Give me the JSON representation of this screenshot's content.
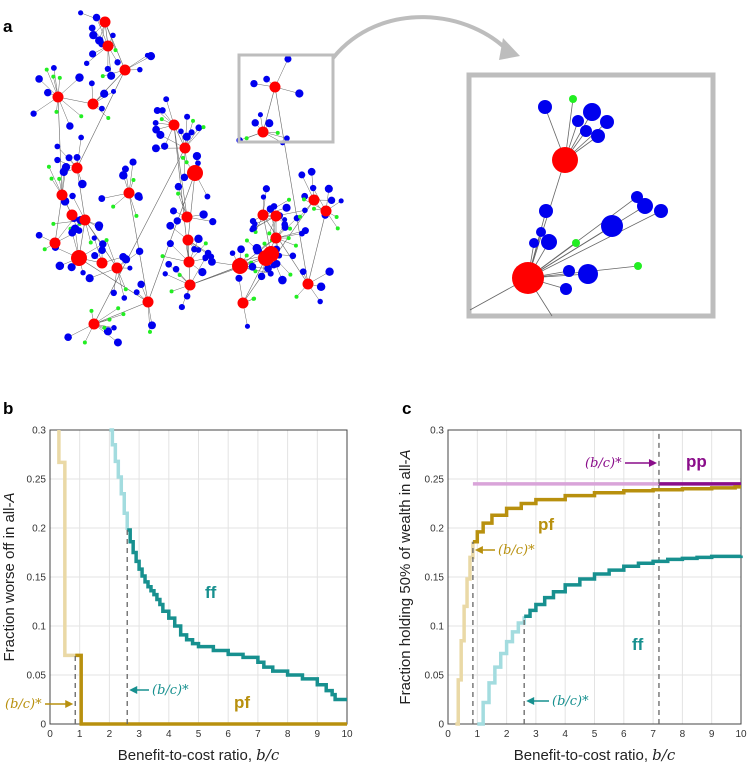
{
  "panels": {
    "a": {
      "letter": "a"
    },
    "b": {
      "letter": "b"
    },
    "c": {
      "letter": "c"
    }
  },
  "colors": {
    "hub": "#ff0000",
    "node": "#0000ee",
    "leaf": "#22ee22",
    "edge": "#666666",
    "frame": "#bdbdbd",
    "ff": "#17908f",
    "ff_light": "#a3dcdf",
    "pf": "#b8900e",
    "pf_light": "#ead9a6",
    "pp": "#8a0d8a",
    "pp_light": "#d9a4d9",
    "grid": "#e3e3e3",
    "dash": "#666666"
  },
  "chart_data": [
    {
      "panel": "b",
      "type": "line",
      "step": true,
      "xlabel": "Benefit-to-cost ratio, ",
      "xlabel_var": "b/c",
      "ylabel": "Fraction worse off in all-",
      "ylabel_var": "A",
      "xlim": [
        0,
        10
      ],
      "ylim": [
        0,
        0.3
      ],
      "xticks": [
        0,
        1,
        2,
        3,
        4,
        5,
        6,
        7,
        8,
        9,
        10
      ],
      "yticks": [
        0,
        0.05,
        0.1,
        0.15,
        0.2,
        0.25,
        0.3
      ],
      "ytick_labels": [
        "0",
        "0.05",
        "0.1",
        "0.15",
        "0.2",
        "0.25",
        "0.3"
      ],
      "series": [
        {
          "name": "pf",
          "label": "pf",
          "threshold": 0.85,
          "points": [
            [
              0.3,
              0.3
            ],
            [
              0.3,
              0.267
            ],
            [
              0.5,
              0.267
            ],
            [
              0.5,
              0.07
            ],
            [
              0.85,
              0.07
            ]
          ],
          "points_after": [
            [
              0.85,
              0.07
            ],
            [
              1.05,
              0.07
            ],
            [
              1.05,
              0.0
            ],
            [
              10,
              0.0
            ]
          ]
        },
        {
          "name": "ff",
          "label": "ff",
          "threshold": 2.6,
          "points": [
            [
              2.0,
              0.3
            ],
            [
              2.1,
              0.285
            ],
            [
              2.2,
              0.268
            ],
            [
              2.3,
              0.252
            ],
            [
              2.4,
              0.235
            ],
            [
              2.5,
              0.215
            ],
            [
              2.6,
              0.198
            ]
          ],
          "points_after": [
            [
              2.6,
              0.198
            ],
            [
              2.7,
              0.186
            ],
            [
              2.8,
              0.175
            ],
            [
              2.9,
              0.166
            ],
            [
              3.0,
              0.158
            ],
            [
              3.1,
              0.151
            ],
            [
              3.2,
              0.145
            ],
            [
              3.3,
              0.14
            ],
            [
              3.4,
              0.136
            ],
            [
              3.5,
              0.132
            ],
            [
              3.6,
              0.127
            ],
            [
              3.7,
              0.122
            ],
            [
              3.8,
              0.115
            ],
            [
              4.0,
              0.108
            ],
            [
              4.2,
              0.1
            ],
            [
              4.4,
              0.091
            ],
            [
              4.6,
              0.086
            ],
            [
              4.8,
              0.082
            ],
            [
              5.0,
              0.079
            ],
            [
              5.5,
              0.075
            ],
            [
              6.0,
              0.071
            ],
            [
              6.5,
              0.068
            ],
            [
              7.0,
              0.063
            ],
            [
              7.2,
              0.058
            ],
            [
              7.5,
              0.054
            ],
            [
              8.0,
              0.05
            ],
            [
              8.5,
              0.046
            ],
            [
              9.0,
              0.04
            ],
            [
              9.3,
              0.034
            ],
            [
              9.5,
              0.03
            ],
            [
              9.6,
              0.025
            ],
            [
              10,
              0.025
            ]
          ]
        }
      ],
      "annotations": [
        {
          "text": "(b/c)*",
          "series": "pf"
        },
        {
          "text": "(b/c)*",
          "series": "ff"
        }
      ]
    },
    {
      "panel": "c",
      "type": "line",
      "step": true,
      "xlabel": "Benefit-to-cost ratio, ",
      "xlabel_var": "b/c",
      "ylabel": "Fraction holding 50% of wealth in all-",
      "ylabel_var": "A",
      "xlim": [
        0,
        10
      ],
      "ylim": [
        0,
        0.3
      ],
      "xticks": [
        0,
        1,
        2,
        3,
        4,
        5,
        6,
        7,
        8,
        9,
        10
      ],
      "yticks": [
        0,
        0.05,
        0.1,
        0.15,
        0.2,
        0.25,
        0.3
      ],
      "ytick_labels": [
        "0",
        "0.05",
        "0.1",
        "0.15",
        "0.2",
        "0.25",
        "0.3"
      ],
      "series": [
        {
          "name": "pp",
          "label": "pp",
          "threshold": 7.2,
          "points": [
            [
              0.85,
              0.245
            ],
            [
              7.2,
              0.245
            ]
          ],
          "points_after": [
            [
              7.2,
              0.245
            ],
            [
              10,
              0.245
            ]
          ]
        },
        {
          "name": "pf",
          "label": "pf",
          "threshold": 0.85,
          "points": [
            [
              0.25,
              0.0
            ],
            [
              0.35,
              0.045
            ],
            [
              0.45,
              0.085
            ],
            [
              0.55,
              0.12
            ],
            [
              0.65,
              0.148
            ],
            [
              0.75,
              0.17
            ],
            [
              0.85,
              0.186
            ]
          ],
          "points_after": [
            [
              0.85,
              0.186
            ],
            [
              1.0,
              0.196
            ],
            [
              1.2,
              0.205
            ],
            [
              1.5,
              0.213
            ],
            [
              2.0,
              0.22
            ],
            [
              2.5,
              0.225
            ],
            [
              3.0,
              0.229
            ],
            [
              4.0,
              0.233
            ],
            [
              5.0,
              0.236
            ],
            [
              6.0,
              0.238
            ],
            [
              7.0,
              0.239
            ],
            [
              8.0,
              0.24
            ],
            [
              9.0,
              0.241
            ],
            [
              9.8,
              0.242
            ],
            [
              10,
              0.242
            ]
          ]
        },
        {
          "name": "ff",
          "label": "ff",
          "threshold": 2.6,
          "points": [
            [
              1.0,
              0.0
            ],
            [
              1.2,
              0.022
            ],
            [
              1.4,
              0.042
            ],
            [
              1.6,
              0.058
            ],
            [
              1.8,
              0.072
            ],
            [
              2.0,
              0.084
            ],
            [
              2.2,
              0.094
            ],
            [
              2.4,
              0.103
            ],
            [
              2.6,
              0.11
            ]
          ],
          "points_after": [
            [
              2.6,
              0.11
            ],
            [
              2.8,
              0.116
            ],
            [
              3.0,
              0.122
            ],
            [
              3.3,
              0.129
            ],
            [
              3.6,
              0.135
            ],
            [
              4.0,
              0.142
            ],
            [
              4.5,
              0.148
            ],
            [
              5.0,
              0.153
            ],
            [
              5.5,
              0.157
            ],
            [
              6.0,
              0.161
            ],
            [
              6.5,
              0.164
            ],
            [
              7.0,
              0.166
            ],
            [
              7.5,
              0.168
            ],
            [
              8.0,
              0.169
            ],
            [
              8.5,
              0.17
            ],
            [
              9.0,
              0.171
            ],
            [
              9.5,
              0.171
            ],
            [
              10,
              0.172
            ]
          ]
        }
      ],
      "annotations": [
        {
          "text": "(b/c)*",
          "series": "pp"
        },
        {
          "text": "(b/c)*",
          "series": "pf"
        },
        {
          "text": "(b/c)*",
          "series": "ff"
        }
      ]
    }
  ]
}
